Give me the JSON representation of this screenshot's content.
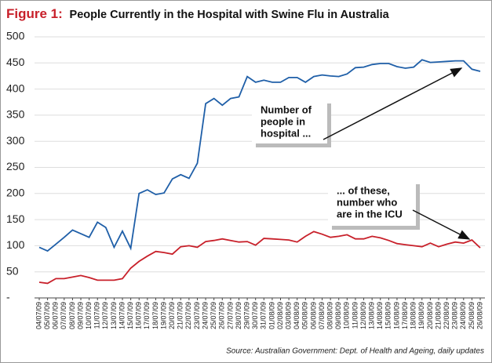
{
  "chart_data": {
    "type": "line",
    "title_prefix": "Figure 1:",
    "title": "People Currently in the Hospital with Swine Flu in Australia",
    "source": "Source: Australian Government: Dept. of Health and Ageing, daily updates",
    "categories": [
      "04/07/09",
      "05/07/09",
      "06/07/09",
      "07/07/09",
      "08/07/09",
      "09/07/09",
      "10/07/09",
      "11/07/09",
      "12/07/09",
      "13/07/09",
      "14/07/09",
      "15/07/09",
      "16/07/09",
      "17/07/09",
      "18/07/09",
      "19/07/09",
      "20/07/09",
      "21/07/09",
      "22/07/09",
      "23/07/09",
      "24/07/09",
      "25/07/09",
      "26/07/09",
      "27/07/09",
      "28/07/09",
      "29/07/09",
      "30/07/09",
      "31/07/09",
      "01/08/09",
      "02/08/09",
      "03/08/09",
      "04/08/09",
      "05/08/09",
      "06/08/09",
      "07/08/09",
      "08/08/09",
      "09/08/09",
      "10/08/09",
      "11/08/09",
      "12/08/09",
      "13/08/09",
      "14/08/09",
      "15/08/09",
      "16/08/09",
      "17/08/09",
      "18/08/09",
      "19/08/09",
      "20/08/09",
      "21/08/09",
      "22/08/09",
      "23/08/09",
      "24/08/09",
      "25/08/09",
      "26/08/09"
    ],
    "series": [
      {
        "name": "Number of people in hospital",
        "color": "#1f5fa8",
        "values": [
          97,
          90,
          103,
          116,
          130,
          123,
          116,
          145,
          135,
          97,
          128,
          95,
          200,
          207,
          198,
          201,
          228,
          236,
          229,
          258,
          372,
          382,
          369,
          382,
          385,
          424,
          413,
          417,
          413,
          413,
          422,
          422,
          413,
          424,
          427,
          425,
          424,
          429,
          441,
          442,
          447,
          449,
          449,
          443,
          440,
          442,
          456,
          451,
          452,
          453,
          454,
          454,
          438,
          434
        ]
      },
      {
        "name": "Number in the ICU",
        "color": "#c8202a",
        "values": [
          30,
          28,
          37,
          37,
          40,
          43,
          39,
          34,
          34,
          34,
          37,
          57,
          70,
          80,
          89,
          87,
          84,
          98,
          100,
          97,
          108,
          110,
          113,
          110,
          107,
          108,
          101,
          114,
          113,
          112,
          111,
          107,
          118,
          127,
          122,
          116,
          118,
          121,
          113,
          113,
          118,
          115,
          110,
          104,
          102,
          100,
          98,
          105,
          98,
          103,
          107,
          105,
          111,
          96
        ]
      }
    ],
    "annotations": [
      [
        "Number of",
        "people in",
        "hospital ..."
      ],
      [
        "... of these,",
        "number who",
        "are in the ICU"
      ]
    ],
    "ylim": [
      0,
      500
    ],
    "yticks": [
      {
        "value": 0,
        "label": "-"
      },
      50,
      100,
      150,
      200,
      250,
      300,
      350,
      400,
      450,
      500
    ],
    "grid": true
  }
}
